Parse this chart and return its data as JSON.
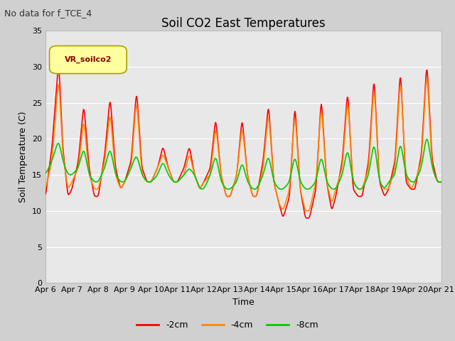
{
  "title": "Soil CO2 East Temperatures",
  "subtitle": "No data for f_TCE_4",
  "xlabel": "Time",
  "ylabel": "Soil Temperature (C)",
  "legend_label": "VR_soilco2",
  "series_labels": [
    "-2cm",
    "-4cm",
    "-8cm"
  ],
  "series_colors": [
    "#ff0000",
    "#ff8800",
    "#00cc00"
  ],
  "ylim": [
    0,
    35
  ],
  "yticks": [
    0,
    5,
    10,
    15,
    20,
    25,
    30,
    35
  ],
  "x_tick_labels": [
    "Apr 6",
    "Apr 7",
    "Apr 8",
    "Apr 9",
    "Apr 10",
    "Apr 11",
    "Apr 12",
    "Apr 13",
    "Apr 14",
    "Apr 15",
    "Apr 16",
    "Apr 17",
    "Apr 18",
    "Apr 19",
    "Apr 20",
    "Apr 21"
  ],
  "fig_bg": "#d0d0d0",
  "plot_bg": "#e8e8e8",
  "grid_color": "#ffffff",
  "legend_box_facecolor": "#ffffa0",
  "legend_box_edgecolor": "#aaa000",
  "legend_text_color": "#880000",
  "title_fontsize": 12,
  "label_fontsize": 9,
  "tick_fontsize": 8,
  "subtitle_fontsize": 9
}
